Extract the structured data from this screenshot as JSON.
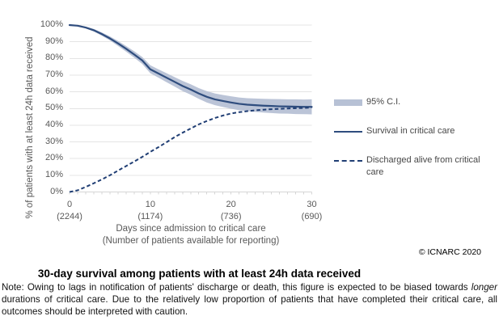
{
  "chart_data": {
    "type": "line",
    "title": "30-day survival among patients with at least 24h data received",
    "ylabel": "% of patients with at least 24h data received",
    "xlabel_line1": "Days since admission to critical care",
    "xlabel_line2": "(Number of patients available for reporting)",
    "xlim": [
      0,
      30
    ],
    "ylim": [
      0,
      100
    ],
    "grid": true,
    "legend_position": "right",
    "y_tick_labels": [
      "0%",
      "10%",
      "20%",
      "30%",
      "40%",
      "50%",
      "60%",
      "70%",
      "80%",
      "90%",
      "100%"
    ],
    "x_major_ticks": [
      {
        "day": 0,
        "label": "0",
        "count": "(2244)"
      },
      {
        "day": 10,
        "label": "10",
        "count": "(1174)"
      },
      {
        "day": 20,
        "label": "20",
        "count": "(736)"
      },
      {
        "day": 30,
        "label": "30",
        "count": "(690)"
      }
    ],
    "x": [
      0,
      1,
      2,
      3,
      4,
      5,
      6,
      7,
      8,
      9,
      10,
      11,
      12,
      13,
      14,
      15,
      16,
      17,
      18,
      19,
      20,
      21,
      22,
      23,
      24,
      25,
      26,
      27,
      28,
      29,
      30
    ],
    "series": [
      {
        "name": "95% C.I.",
        "type": "band",
        "color": "#B7C1D5",
        "upper": [
          100,
          99.9,
          99,
          97.7,
          95.6,
          93.2,
          90.5,
          87.5,
          84.3,
          80.9,
          75.9,
          73.5,
          71.2,
          68.8,
          66.5,
          64.5,
          62.2,
          60.4,
          59,
          58.1,
          57.3,
          56.6,
          56.2,
          56,
          55.8,
          55.7,
          55.6,
          55.5,
          55.5,
          55.4,
          55.5
        ],
        "lower": [
          99.8,
          99.3,
          98,
          96.1,
          93.6,
          90.8,
          87.5,
          84.1,
          80.5,
          76.7,
          71.1,
          68.5,
          65.8,
          63.2,
          60.5,
          58.3,
          55.8,
          53.6,
          52,
          50.9,
          49.9,
          49,
          48.4,
          48,
          47.6,
          47.3,
          47,
          46.9,
          46.7,
          46.6,
          46.5
        ]
      },
      {
        "name": "Survival in critical care",
        "type": "solid",
        "color": "#2F4D7E",
        "values": [
          100,
          99.6,
          98.5,
          96.9,
          94.6,
          92,
          89,
          85.8,
          82.4,
          78.8,
          73.5,
          71,
          68.5,
          66,
          63.5,
          61.4,
          59,
          57,
          55.5,
          54.5,
          53.6,
          52.8,
          52.3,
          52,
          51.7,
          51.5,
          51.3,
          51.2,
          51.1,
          51,
          51
        ]
      },
      {
        "name": "Discharged alive from critical care",
        "type": "dashed",
        "color": "#203E74",
        "values": [
          0,
          1,
          3,
          5.2,
          7.5,
          10,
          12.8,
          15.5,
          18.2,
          21,
          24,
          26.8,
          29.8,
          32.8,
          35.5,
          38,
          40.5,
          42.5,
          44.3,
          45.8,
          47,
          47.8,
          48.4,
          48.9,
          49.3,
          49.6,
          49.8,
          50,
          50.2,
          50.3,
          50.6
        ]
      }
    ],
    "grid_color": "#E4E4E4",
    "axis_color": "#D6D6D6"
  },
  "footer": {
    "copyright": "© ICNARC 2020"
  },
  "caption": {
    "title": "30-day survival among patients with at least 24h data received",
    "note_prefix": "Note: Owing to lags in notification of patients' discharge or death, this figure is expected to be biased towards ",
    "note_italic": "longer",
    "note_suffix": " durations of critical care. Due to the relatively low proportion of patients that have completed their critical care, all outcomes should be interpreted with caution."
  }
}
